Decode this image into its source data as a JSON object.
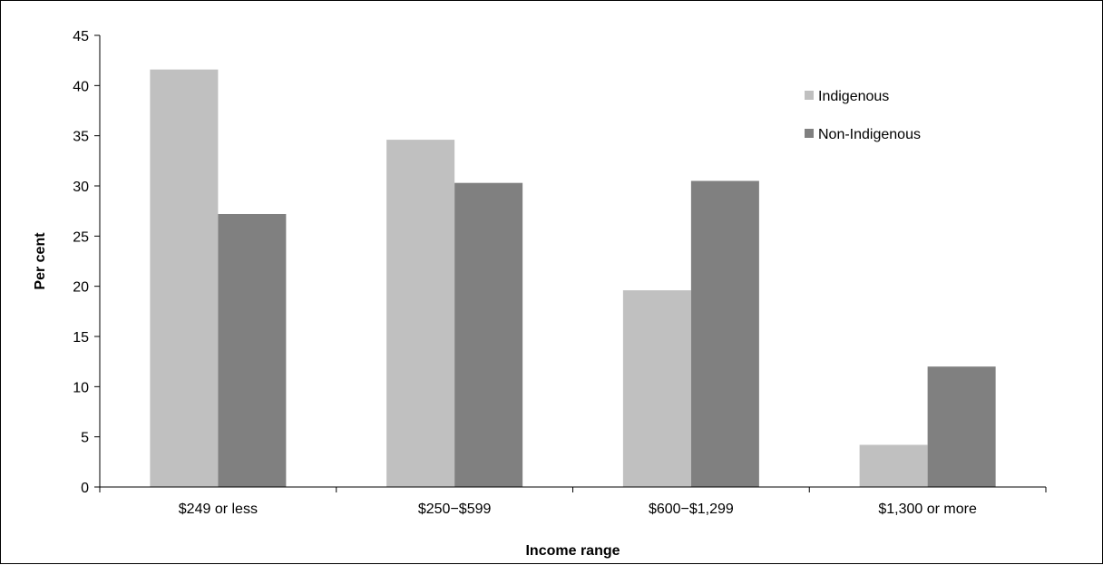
{
  "chart_data": {
    "type": "bar",
    "title": "",
    "xlabel": "Income range",
    "ylabel": "Per cent",
    "ylim": [
      0,
      45
    ],
    "yticks": [
      0,
      5,
      10,
      15,
      20,
      25,
      30,
      35,
      40,
      45
    ],
    "grid": false,
    "legend_position": "top-right",
    "categories": [
      "$249 or less",
      "$250−$599",
      "$600−$1,299",
      "$1,300 or more"
    ],
    "series": [
      {
        "name": "Indigenous",
        "color": "#c0c0c0",
        "values": [
          41.6,
          34.6,
          19.6,
          4.2
        ]
      },
      {
        "name": "Non-Indigenous",
        "color": "#808080",
        "values": [
          27.2,
          30.3,
          30.5,
          12.0
        ]
      }
    ]
  }
}
